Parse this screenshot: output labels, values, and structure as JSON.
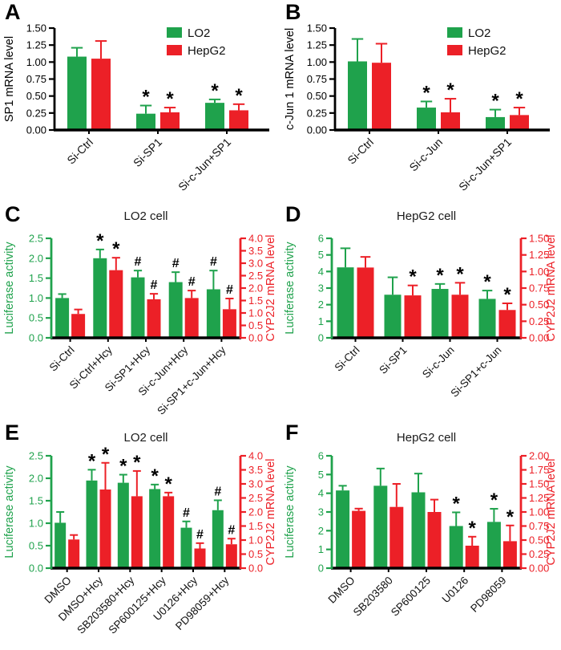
{
  "figure": {
    "background": "#ffffff",
    "description": "Six-panel bar chart figure (A-F) of SP1/c-Jun silencing and kinase inhibitor effects on luciferase activity and CYP2J2 mRNA in LO2 and HepG2 cells"
  },
  "colors": {
    "green": "#1fa24c",
    "red": "#ec2027",
    "black": "#000000",
    "text": "#111111"
  },
  "legend_items": [
    {
      "label": "LO2",
      "color": "green"
    },
    {
      "label": "HepG2",
      "color": "red"
    }
  ],
  "chart_data": [
    {
      "panel": "A",
      "type": "bar-grouped",
      "title": "",
      "ylabel": "SP1 mRNA level",
      "ylim": [
        0,
        1.5
      ],
      "yticks": [
        "0.00",
        "0.25",
        "0.50",
        "0.75",
        "1.00",
        "1.25",
        "1.50"
      ],
      "categories": [
        "Si-Ctrl",
        "Si-SP1",
        "Si-c-Jun+SP1"
      ],
      "legend": true,
      "series": [
        {
          "name": "LO2",
          "color": "green",
          "values": [
            1.08,
            0.24,
            0.4
          ],
          "errors": [
            0.13,
            0.12,
            0.05
          ],
          "sig": [
            "",
            "*",
            "*"
          ]
        },
        {
          "name": "HepG2",
          "color": "red",
          "values": [
            1.05,
            0.26,
            0.29
          ],
          "errors": [
            0.26,
            0.07,
            0.09
          ],
          "sig": [
            "",
            "*",
            "*"
          ]
        }
      ]
    },
    {
      "panel": "B",
      "type": "bar-grouped",
      "title": "",
      "ylabel": "c-Jun 1 mRNA level",
      "ylim": [
        0,
        1.5
      ],
      "yticks": [
        "0.00",
        "0.25",
        "0.50",
        "0.75",
        "1.00",
        "1.25",
        "1.50"
      ],
      "categories": [
        "Si-Ctrl",
        "Si-c-Jun",
        "Si-c-Jun+SP1"
      ],
      "legend": true,
      "series": [
        {
          "name": "LO2",
          "color": "green",
          "values": [
            1.01,
            0.33,
            0.19
          ],
          "errors": [
            0.33,
            0.09,
            0.11
          ],
          "sig": [
            "",
            "*",
            "*"
          ]
        },
        {
          "name": "HepG2",
          "color": "red",
          "values": [
            0.99,
            0.26,
            0.22
          ],
          "errors": [
            0.28,
            0.2,
            0.11
          ],
          "sig": [
            "",
            "*",
            "*"
          ]
        }
      ]
    },
    {
      "panel": "C",
      "type": "bar-dual",
      "title": "LO2 cell",
      "categories": [
        "Si-Ctrl",
        "Si-Ctrl+Hcy",
        "Si-SP1+Hcy",
        "Si-c-Jun+Hcy",
        "Si-SP1+c-Jun+Hcy"
      ],
      "left": {
        "label": "Luciferase activity",
        "color": "green",
        "lim": [
          0,
          2.5
        ],
        "ticks": [
          "0.0",
          "0.5",
          "1.0",
          "1.5",
          "2.0",
          "2.5"
        ],
        "values": [
          1.0,
          2.0,
          1.52,
          1.4,
          1.22
        ],
        "errors": [
          0.1,
          0.22,
          0.17,
          0.25,
          0.47
        ],
        "sig": [
          "",
          "*",
          "#",
          "#",
          "#"
        ]
      },
      "right": {
        "label": "CYP2J2 mRNA level",
        "color": "red",
        "lim": [
          0,
          4.0
        ],
        "ticks": [
          "0.0",
          "0.5",
          "1.0",
          "1.5",
          "2.0",
          "2.5",
          "3.0",
          "3.5",
          "4.0"
        ],
        "values": [
          0.96,
          2.72,
          1.55,
          1.6,
          1.15
        ],
        "errors": [
          0.18,
          0.5,
          0.22,
          0.3,
          0.43
        ],
        "sig": [
          "",
          "*",
          "#",
          "#",
          "#"
        ]
      }
    },
    {
      "panel": "D",
      "type": "bar-dual",
      "title": "HepG2 cell",
      "categories": [
        "Si-Ctrl",
        "Si-SP1",
        "Si-c-Jun",
        "Si-SP1+c-Jun"
      ],
      "left": {
        "label": "Luciferase activity",
        "color": "green",
        "lim": [
          0,
          6
        ],
        "ticks": [
          "0",
          "1",
          "2",
          "3",
          "4",
          "5",
          "6"
        ],
        "values": [
          4.25,
          2.6,
          2.95,
          2.35
        ],
        "errors": [
          1.15,
          1.05,
          0.3,
          0.5
        ],
        "sig": [
          "",
          "",
          "*",
          "*"
        ]
      },
      "right": {
        "label": "CYP2J2 mRNA level",
        "color": "red",
        "lim": [
          0,
          1.5
        ],
        "ticks": [
          "0.00",
          "0.25",
          "0.50",
          "0.75",
          "1.00",
          "1.25",
          "1.50"
        ],
        "values": [
          1.06,
          0.64,
          0.65,
          0.42
        ],
        "errors": [
          0.16,
          0.15,
          0.18,
          0.1
        ],
        "sig": [
          "",
          "*",
          "*",
          "*"
        ]
      }
    },
    {
      "panel": "E",
      "type": "bar-dual",
      "title": "LO2 cell",
      "categories": [
        "DMSO",
        "DMSO+Hcy",
        "SB203580+Hcy",
        "SP600125+Hcy",
        "U0126+Hcy",
        "PD98059+Hcy"
      ],
      "left": {
        "label": "Luciferase activity",
        "color": "green",
        "lim": [
          0,
          2.5
        ],
        "ticks": [
          "0.0",
          "0.5",
          "1.0",
          "1.5",
          "2.0",
          "2.5"
        ],
        "values": [
          1.01,
          1.95,
          1.9,
          1.76,
          0.9,
          1.29
        ],
        "errors": [
          0.24,
          0.24,
          0.18,
          0.1,
          0.14,
          0.22
        ],
        "sig": [
          "",
          "*",
          "*",
          "*",
          "#",
          "#"
        ]
      },
      "right": {
        "label": "CYP2J2 mRNA level",
        "color": "red",
        "lim": [
          0,
          4.0
        ],
        "ticks": [
          "0.0",
          "0.5",
          "1.0",
          "1.5",
          "2.0",
          "2.5",
          "3.0",
          "3.5",
          "4.0"
        ],
        "values": [
          1.02,
          2.8,
          2.56,
          2.56,
          0.7,
          0.85
        ],
        "errors": [
          0.16,
          0.95,
          0.9,
          0.13,
          0.19,
          0.2
        ],
        "sig": [
          "",
          "*",
          "*",
          "*",
          "#",
          "#"
        ]
      }
    },
    {
      "panel": "F",
      "type": "bar-dual",
      "title": "HepG2 cell",
      "categories": [
        "DMSO",
        "SB203580",
        "SP600125",
        "U0126",
        "PD98059"
      ],
      "left": {
        "label": "Luciferase activity",
        "color": "green",
        "lim": [
          0,
          6
        ],
        "ticks": [
          "0",
          "1",
          "2",
          "3",
          "4",
          "5",
          "6"
        ],
        "values": [
          4.15,
          4.4,
          4.05,
          2.25,
          2.47
        ],
        "errors": [
          0.25,
          0.92,
          1.0,
          0.73,
          0.7
        ],
        "sig": [
          "",
          "",
          "",
          "*",
          "*"
        ]
      },
      "right": {
        "label": "CYP2J2 mRNA level",
        "color": "red",
        "lim": [
          0,
          2.0
        ],
        "ticks": [
          "0.00",
          "0.25",
          "0.50",
          "0.75",
          "1.00",
          "1.25",
          "1.50",
          "1.75",
          "2.00"
        ],
        "values": [
          1.02,
          1.09,
          1.0,
          0.4,
          0.48
        ],
        "errors": [
          0.04,
          0.41,
          0.22,
          0.16,
          0.28
        ],
        "sig": [
          "",
          "",
          "",
          "*",
          "*"
        ]
      }
    }
  ]
}
